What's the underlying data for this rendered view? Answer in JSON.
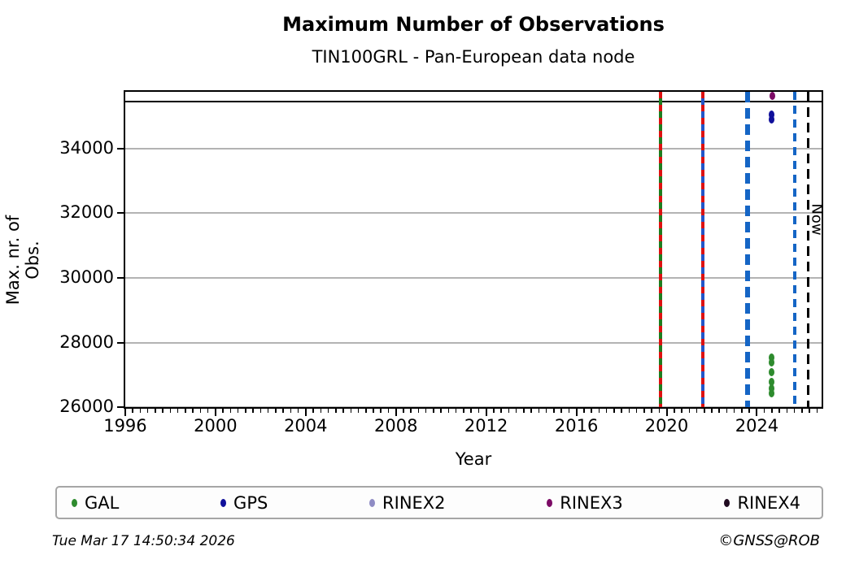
{
  "header": {
    "title": "Maximum Number of Observations",
    "subtitle": "TIN100GRL - Pan-European data node"
  },
  "footer": {
    "timestamp": "Tue Mar 17 14:50:34 2026",
    "credit": "©GNSS@ROB"
  },
  "chart_data": {
    "type": "scatter",
    "title": "Maximum Number of Observations",
    "subtitle": "TIN100GRL - Pan-European data node",
    "xlabel": "Year",
    "ylabel": "Max. nr. of Obs.",
    "xlim": [
      1995.93,
      2026.94
    ],
    "ylim": [
      25960,
      35800
    ],
    "xticks": [
      1996,
      2000,
      2004,
      2008,
      2012,
      2016,
      2020,
      2024
    ],
    "yticks": [
      26000,
      28000,
      30000,
      32000,
      34000
    ],
    "x_minor_ticks_per_year": 3,
    "grid": "horizontal-gray",
    "grid_color": "#b3b3b3",
    "hline": {
      "y": 35450,
      "color": "#000000"
    },
    "vlines": [
      {
        "name": "green-red-dashed-line",
        "year": 2019.72,
        "color": "#1e7e1e",
        "width": 4,
        "dash": null,
        "overlay": {
          "color": "#dd1111",
          "dash": [
            8,
            8
          ]
        }
      },
      {
        "name": "blue-red-dashed-line",
        "year": 2021.62,
        "color": "#2256c8",
        "width": 4,
        "dash": null,
        "overlay": {
          "color": "#dd1111",
          "dash": [
            8,
            8
          ]
        }
      },
      {
        "name": "thick-blue-dashed-line",
        "year": 2023.57,
        "color": "#1565c5",
        "width": 6,
        "dash": [
          13,
          7
        ],
        "overlay": null
      },
      {
        "name": "blue-dashed-line",
        "year": 2025.68,
        "color": "#1565c5",
        "width": 3.5,
        "dash": [
          10,
          7
        ],
        "overlay": null
      },
      {
        "name": "now-line",
        "year": 2026.27,
        "color": "#000000",
        "width": 2.5,
        "dash": [
          12,
          7
        ],
        "overlay": null
      }
    ],
    "now_label": {
      "text": "Now",
      "year_right_of": 2026.27,
      "y_center": 31800
    },
    "legend_position": "bottom",
    "series": [
      {
        "name": "GAL",
        "color": "#2e8b2e",
        "marker": "ellipse",
        "points": [
          [
            2024.65,
            27550
          ],
          [
            2024.65,
            27390
          ],
          [
            2024.65,
            27080
          ],
          [
            2024.65,
            26790
          ],
          [
            2024.65,
            26590
          ],
          [
            2024.65,
            26440
          ]
        ]
      },
      {
        "name": "GPS",
        "color": "#10109b",
        "marker": "ellipse",
        "points": [
          [
            2024.64,
            35050
          ],
          [
            2024.64,
            34900
          ]
        ]
      },
      {
        "name": "RINEX2",
        "color": "#8f8cc4",
        "marker": "ellipse",
        "points": []
      },
      {
        "name": "RINEX3",
        "color": "#7c0b66",
        "marker": "ellipse",
        "points": [
          [
            2024.67,
            35630
          ]
        ]
      },
      {
        "name": "RINEX4",
        "color": "#200a20",
        "marker": "ellipse",
        "points": []
      }
    ],
    "legend": [
      "GAL",
      "GPS",
      "RINEX2",
      "RINEX3",
      "RINEX4"
    ]
  }
}
